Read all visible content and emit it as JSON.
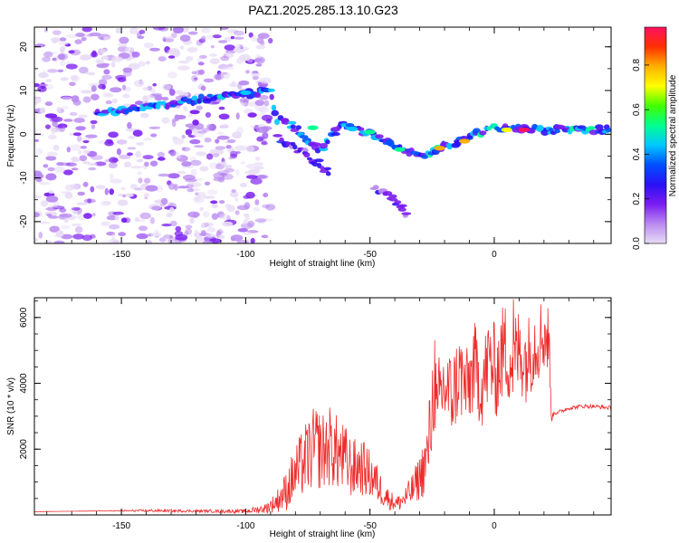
{
  "title": "PAZ1.2025.285.13.10.G23",
  "colors": {
    "snr_line": "#ee2b2b",
    "colormap": [
      "#e8dcf6",
      "#b98af0",
      "#7a1cf0",
      "#2a10f5",
      "#0050ff",
      "#00c8ff",
      "#00ff90",
      "#40ff00",
      "#ffff00",
      "#ffb000",
      "#ff3000",
      "#ff1060"
    ]
  },
  "chart_data": [
    {
      "type": "heatmap",
      "name": "spectrogram",
      "title": "PAZ1.2025.285.13.10.G23",
      "xlabel": "Height of straight line (km)",
      "ylabel": "Frequency (Hz)",
      "xlim": [
        -185,
        47
      ],
      "ylim": [
        -25,
        24.5
      ],
      "xticks": [
        -150,
        -100,
        -50,
        0
      ],
      "yticks": [
        -20,
        -10,
        0,
        10,
        20
      ],
      "x_tick_labels": [
        "-150",
        "-100",
        "-50",
        "0"
      ],
      "y_tick_labels": [
        "-20",
        "-10",
        "0",
        "10",
        "20"
      ],
      "colorbar": {
        "label": "Normalized spectral amplitude",
        "range": [
          0,
          0.97
        ],
        "ticks": [
          0.0,
          0.2,
          0.4,
          0.6,
          0.8
        ],
        "tick_labels": [
          "0.0",
          "0.2",
          "0.4",
          "0.6",
          "0.8"
        ]
      },
      "noise_region_x": [
        -185,
        -90
      ],
      "main_track": [
        [
          -160,
          5
        ],
        [
          -140,
          6.2
        ],
        [
          -120,
          7.8
        ],
        [
          -100,
          9.2
        ],
        [
          -90,
          9.8
        ],
        [
          -87,
          3.5
        ],
        [
          -80,
          1.5
        ],
        [
          -75,
          -2
        ],
        [
          -70,
          -3.5
        ],
        [
          -62,
          2.5
        ],
        [
          -55,
          0.8
        ],
        [
          -50,
          0
        ],
        [
          -45,
          -1.5
        ],
        [
          -40,
          -2.5
        ],
        [
          -35,
          -4
        ],
        [
          -28,
          -5
        ],
        [
          -22,
          -3
        ],
        [
          -15,
          -2
        ],
        [
          -10,
          -0.5
        ],
        [
          -5,
          0.5
        ],
        [
          0,
          1.5
        ],
        [
          10,
          1.2
        ],
        [
          20,
          1
        ],
        [
          47,
          1
        ]
      ],
      "second_track": [
        [
          -87,
          -1
        ],
        [
          -80,
          -3
        ],
        [
          -75,
          -5
        ],
        [
          -70,
          -7
        ],
        [
          -66,
          -9
        ]
      ],
      "third_track": [
        [
          -48,
          -12
        ],
        [
          -42,
          -14.5
        ],
        [
          -37,
          -17
        ],
        [
          -35,
          -19
        ]
      ],
      "hot_spots": [
        [
          -100,
          9.5,
          0.45
        ],
        [
          -73,
          1.5,
          0.5
        ],
        [
          -57,
          1.2,
          0.45
        ],
        [
          -50,
          0.5,
          0.55
        ],
        [
          -38,
          -3.5,
          0.55
        ],
        [
          -22,
          -3.2,
          0.75
        ],
        [
          -12,
          -1.6,
          0.8
        ],
        [
          5,
          1,
          0.72
        ],
        [
          12,
          1,
          0.95
        ]
      ]
    },
    {
      "type": "line",
      "name": "snr",
      "xlabel": "Height of straight line (km)",
      "ylabel": "SNR (10 * v/v)",
      "xlim": [
        -185,
        47
      ],
      "ylim": [
        0,
        6600
      ],
      "xticks": [
        -150,
        -100,
        -50,
        0
      ],
      "yticks": [
        2000,
        4000,
        6000
      ],
      "x_tick_labels": [
        "-150",
        "-100",
        "-50",
        "0"
      ],
      "y_tick_labels": [
        "2000",
        "4000",
        "6000"
      ],
      "series": [
        {
          "name": "SNR",
          "x": [
            -185,
            -160,
            -140,
            -120,
            -100,
            -92,
            -88,
            -84,
            -80,
            -76,
            -72,
            -69,
            -66,
            -63,
            -60,
            -57,
            -54,
            -51,
            -48,
            -45,
            -42,
            -39,
            -36,
            -33,
            -30,
            -27,
            -25,
            -24,
            -23,
            -22,
            -20,
            -17,
            -14,
            -11,
            -8,
            -5,
            -2,
            1,
            4,
            7,
            10,
            13,
            16,
            20,
            22,
            23,
            24,
            27,
            30,
            35,
            40,
            47
          ],
          "y": [
            100,
            120,
            130,
            120,
            110,
            200,
            380,
            700,
            1250,
            1700,
            2050,
            1950,
            2100,
            1850,
            1650,
            1400,
            1500,
            1300,
            1050,
            700,
            450,
            350,
            500,
            750,
            1150,
            1700,
            3200,
            4400,
            2500,
            3600,
            3900,
            3600,
            4300,
            3800,
            4500,
            3900,
            4700,
            4300,
            5100,
            4600,
            5000,
            4700,
            5200,
            5500,
            5300,
            2900,
            3100,
            3150,
            3250,
            3300,
            3300,
            3250
          ],
          "spike_amplitude": [
            0,
            0,
            40,
            40,
            60,
            150,
            300,
            600,
            900,
            1100,
            1300,
            1200,
            1250,
            1150,
            1100,
            900,
            900,
            800,
            700,
            450,
            300,
            250,
            350,
            500,
            700,
            1100,
            1500,
            1600,
            1500,
            1500,
            1400,
            1300,
            1400,
            1300,
            1400,
            1300,
            1500,
            1400,
            1500,
            1400,
            1400,
            1300,
            1300,
            1200,
            1100,
            80,
            80,
            60,
            60,
            60,
            60,
            60
          ],
          "peak_value": 6550
        }
      ]
    }
  ]
}
